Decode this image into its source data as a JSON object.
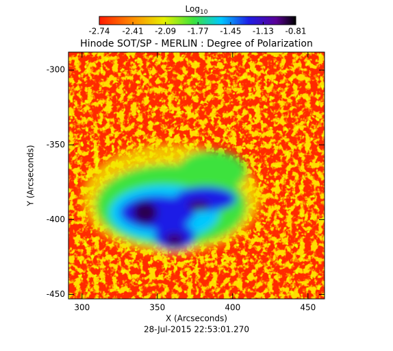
{
  "chart_data": {
    "type": "heatmap",
    "title": "Hinode SOT/SP - MERLIN : Degree of Polarization",
    "colorbar_title": "Log",
    "colorbar_title_sub": "10",
    "clim": [
      -2.74,
      -0.81
    ],
    "cticks": [
      -2.74,
      -2.41,
      -2.09,
      -1.77,
      -1.45,
      -1.13,
      -0.81
    ],
    "x_label": "X (Arcseconds)",
    "y_label": "Y (Arcseconds)",
    "xlim": [
      291,
      461
    ],
    "xticks": [
      300,
      350,
      400,
      450
    ],
    "ylim": [
      -453,
      -288
    ],
    "yticks": [
      -300,
      -350,
      -400,
      -450
    ],
    "footer": "28-Jul-2015 22:53:01.270"
  }
}
